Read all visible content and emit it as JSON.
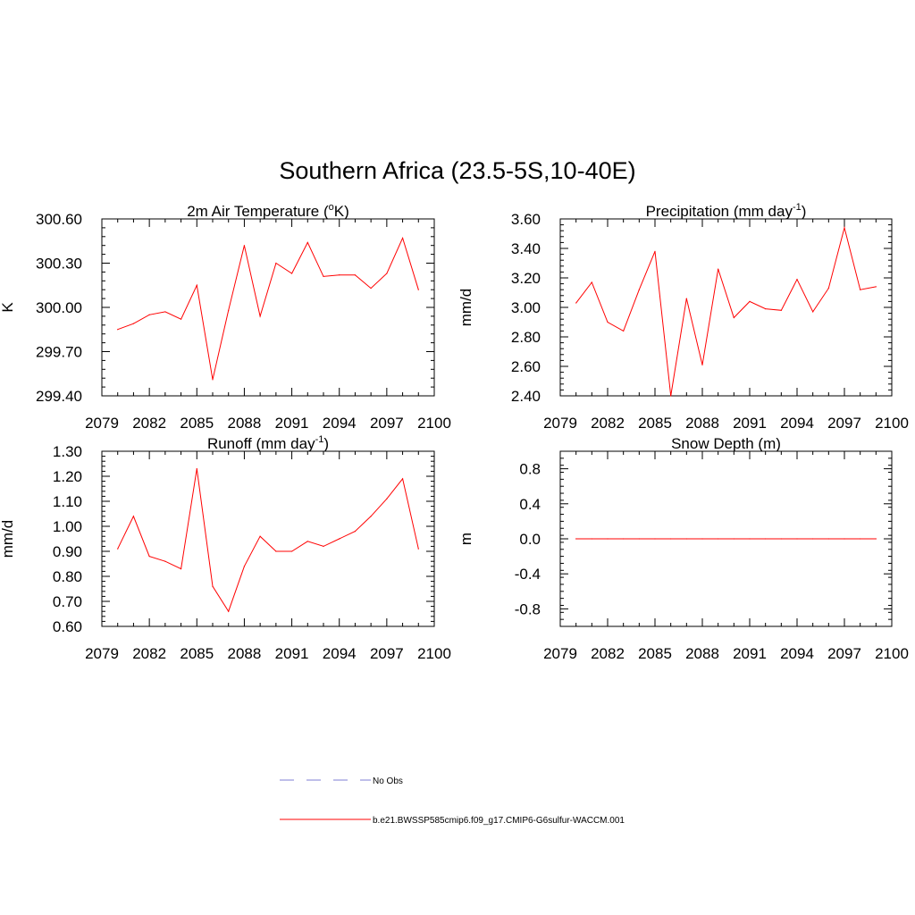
{
  "title": "Southern Africa (23.5-5S,10-40E)",
  "series_color": "#ff0000",
  "obs_color": "#9999dd",
  "legend": {
    "obs_label": "No Obs",
    "model_label": "b.e21.BWSSP585cmip6.f09_g17.CMIP6-G6sulfur-WACCM.001"
  },
  "chart_data": [
    {
      "type": "line",
      "title_main": "2m Air Temperature (",
      "title_sup_pre": "o",
      "title_tail": "K)",
      "ylabel": "K",
      "xlim": [
        2079,
        2100
      ],
      "ylim": [
        299.4,
        300.6
      ],
      "x_ticks": [
        "2079",
        "2082",
        "2085",
        "2088",
        "2091",
        "2094",
        "2097",
        "2100"
      ],
      "y_ticks": [
        "299.40",
        "299.70",
        "300.00",
        "300.30",
        "300.60"
      ],
      "y_tick_values": [
        299.4,
        299.7,
        300.0,
        300.3,
        300.6
      ],
      "series": [
        {
          "x": [
            2080,
            2081,
            2082,
            2083,
            2084,
            2085,
            2086,
            2087,
            2088,
            2089,
            2090,
            2091,
            2092,
            2093,
            2094,
            2095,
            2096,
            2097,
            2098,
            2099
          ],
          "values": [
            299.85,
            299.89,
            299.95,
            299.97,
            299.92,
            300.15,
            299.51,
            299.98,
            300.42,
            299.94,
            300.3,
            300.23,
            300.44,
            300.21,
            300.22,
            300.22,
            300.13,
            300.23,
            300.47,
            300.12
          ]
        }
      ]
    },
    {
      "type": "line",
      "title_main": "Precipitation (mm day",
      "title_sup": "-1",
      "title_tail": ")",
      "ylabel": "mm/d",
      "xlim": [
        2079,
        2100
      ],
      "ylim": [
        2.4,
        3.6
      ],
      "x_ticks": [
        "2079",
        "2082",
        "2085",
        "2088",
        "2091",
        "2094",
        "2097",
        "2100"
      ],
      "y_ticks": [
        "2.40",
        "2.60",
        "2.80",
        "3.00",
        "3.20",
        "3.40",
        "3.60"
      ],
      "y_tick_values": [
        2.4,
        2.6,
        2.8,
        3.0,
        3.2,
        3.4,
        3.6
      ],
      "series": [
        {
          "x": [
            2080,
            2081,
            2082,
            2083,
            2084,
            2085,
            2086,
            2087,
            2088,
            2089,
            2090,
            2091,
            2092,
            2093,
            2094,
            2095,
            2096,
            2097,
            2098,
            2099
          ],
          "values": [
            3.03,
            3.17,
            2.9,
            2.84,
            3.12,
            3.38,
            2.4,
            3.06,
            2.61,
            3.26,
            2.93,
            3.04,
            2.99,
            2.98,
            3.19,
            2.97,
            3.13,
            3.54,
            3.12,
            3.14
          ]
        }
      ]
    },
    {
      "type": "line",
      "title_main": "Runoff (mm day",
      "title_sup": "-1",
      "title_tail": ")",
      "ylabel": "mm/d",
      "xlim": [
        2079,
        2100
      ],
      "ylim": [
        0.6,
        1.3
      ],
      "x_ticks": [
        "2079",
        "2082",
        "2085",
        "2088",
        "2091",
        "2094",
        "2097",
        "2100"
      ],
      "y_ticks": [
        "0.60",
        "0.70",
        "0.80",
        "0.90",
        "1.00",
        "1.10",
        "1.20",
        "1.30"
      ],
      "y_tick_values": [
        0.6,
        0.7,
        0.8,
        0.9,
        1.0,
        1.1,
        1.2,
        1.3
      ],
      "series": [
        {
          "x": [
            2080,
            2081,
            2082,
            2083,
            2084,
            2085,
            2086,
            2087,
            2088,
            2089,
            2090,
            2091,
            2092,
            2093,
            2094,
            2095,
            2096,
            2097,
            2098,
            2099
          ],
          "values": [
            0.91,
            1.04,
            0.88,
            0.86,
            0.83,
            1.23,
            0.76,
            0.66,
            0.84,
            0.96,
            0.9,
            0.9,
            0.94,
            0.92,
            0.95,
            0.98,
            1.04,
            1.11,
            1.19,
            0.91
          ]
        }
      ]
    },
    {
      "type": "line",
      "title_main": "Snow Depth (m)",
      "ylabel": "m",
      "xlim": [
        2079,
        2100
      ],
      "ylim": [
        -1.0,
        1.0
      ],
      "x_ticks": [
        "2079",
        "2082",
        "2085",
        "2088",
        "2091",
        "2094",
        "2097",
        "2100"
      ],
      "y_ticks": [
        "-0.8",
        "-0.4",
        "0.0",
        "0.4",
        "0.8"
      ],
      "y_tick_values": [
        -0.8,
        -0.4,
        0.0,
        0.4,
        0.8
      ],
      "series": [
        {
          "x": [
            2080,
            2081,
            2082,
            2083,
            2084,
            2085,
            2086,
            2087,
            2088,
            2089,
            2090,
            2091,
            2092,
            2093,
            2094,
            2095,
            2096,
            2097,
            2098,
            2099
          ],
          "values": [
            0,
            0,
            0,
            0,
            0,
            0,
            0,
            0,
            0,
            0,
            0,
            0,
            0,
            0,
            0,
            0,
            0,
            0,
            0,
            0
          ]
        }
      ]
    }
  ]
}
